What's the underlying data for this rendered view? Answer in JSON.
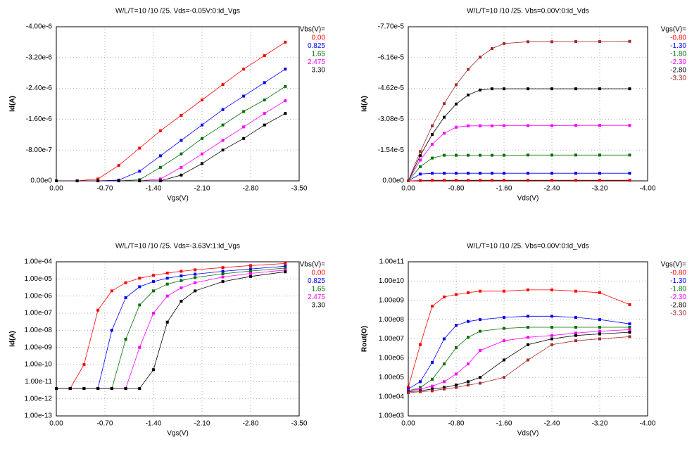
{
  "chart_data": [
    {
      "type": "scatter",
      "title": "W/L/T=10 /10 /25.  Vds=-0.05V:0:Id_Vgs",
      "x_label": "Vgs(V)",
      "y_label": "Id(A)",
      "legend_title": "Vbs(V)=",
      "legend": "right",
      "grid": true,
      "log_y": false,
      "xlim": [
        0,
        -3.5
      ],
      "ylim": [
        0,
        -4e-06
      ],
      "xticks": [
        {
          "value": 0,
          "label": "0.00"
        },
        {
          "value": -0.7,
          "label": "-0.70"
        },
        {
          "value": -1.4,
          "label": "-1.40"
        },
        {
          "value": -2.1,
          "label": "-2.10"
        },
        {
          "value": -2.8,
          "label": "-2.80"
        },
        {
          "value": -3.5,
          "label": "-3.50"
        }
      ],
      "yticks": [
        {
          "value": 0,
          "label": "0.00e0"
        },
        {
          "value": -8e-07,
          "label": "-8.00e-7"
        },
        {
          "value": -1.6e-06,
          "label": "-1.60e-6"
        },
        {
          "value": -2.4e-06,
          "label": "-2.40e-6"
        },
        {
          "value": -3.2e-06,
          "label": "-3.20e-6"
        },
        {
          "value": -4e-06,
          "label": "-4.00e-6"
        }
      ],
      "x": [
        0,
        -0.3,
        -0.6,
        -0.9,
        -1.2,
        -1.5,
        -1.8,
        -2.1,
        -2.4,
        -2.7,
        -3.0,
        -3.3
      ],
      "series": [
        {
          "name": "0.00",
          "color": "#ff0000",
          "values": [
            0,
            0,
            -5e-08,
            -4e-07,
            -8.5e-07,
            -1.3e-06,
            -1.7e-06,
            -2.1e-06,
            -2.5e-06,
            -2.9e-06,
            -3.25e-06,
            -3.6e-06
          ]
        },
        {
          "name": "0.825",
          "color": "#0000ff",
          "values": [
            0,
            0,
            0,
            -2e-08,
            -2.5e-07,
            -6.5e-07,
            -1.05e-06,
            -1.45e-06,
            -1.85e-06,
            -2.2e-06,
            -2.55e-06,
            -2.9e-06
          ]
        },
        {
          "name": "1.65",
          "color": "#007000",
          "values": [
            0,
            0,
            0,
            0,
            -3e-08,
            -3.5e-07,
            -7e-07,
            -1.1e-06,
            -1.45e-06,
            -1.8e-06,
            -2.1e-06,
            -2.45e-06
          ]
        },
        {
          "name": "2.475",
          "color": "#ff00ff",
          "values": [
            0,
            0,
            0,
            0,
            0,
            -5e-08,
            -3.5e-07,
            -7e-07,
            -1.05e-06,
            -1.4e-06,
            -1.75e-06,
            -2.08e-06
          ]
        },
        {
          "name": "3.30",
          "color": "#000000",
          "values": [
            0,
            0,
            0,
            0,
            0,
            0,
            -1.5e-07,
            -4.5e-07,
            -8e-07,
            -1.1e-06,
            -1.45e-06,
            -1.75e-06
          ]
        }
      ]
    },
    {
      "type": "scatter",
      "title": "W/L/T=10 /10 /25.  Vbs=0.00V:0:Id_Vds",
      "x_label": "Vds(V)",
      "y_label": "Id(A)",
      "legend_title": "Vgs(V)=",
      "legend": "right",
      "grid": true,
      "log_y": false,
      "xlim": [
        0,
        -4
      ],
      "ylim": [
        0,
        -7.7e-05
      ],
      "xticks": [
        {
          "value": 0,
          "label": "0.00"
        },
        {
          "value": -0.8,
          "label": "-0.80"
        },
        {
          "value": -1.6,
          "label": "-1.60"
        },
        {
          "value": -2.4,
          "label": "-2.40"
        },
        {
          "value": -3.2,
          "label": "-3.20"
        },
        {
          "value": -4,
          "label": "-4.00"
        }
      ],
      "yticks": [
        {
          "value": 0,
          "label": "0.00e0"
        },
        {
          "value": -1.54e-05,
          "label": "-1.54e-5"
        },
        {
          "value": -3.08e-05,
          "label": "-3.08e-5"
        },
        {
          "value": -4.62e-05,
          "label": "-4.62e-5"
        },
        {
          "value": -6.16e-05,
          "label": "-6.16e-5"
        },
        {
          "value": -7.7e-05,
          "label": "-7.70e-5"
        }
      ],
      "x": [
        0,
        -0.2,
        -0.4,
        -0.6,
        -0.8,
        -1.0,
        -1.2,
        -1.4,
        -1.6,
        -2.0,
        -2.4,
        -2.8,
        -3.2,
        -3.7
      ],
      "series": [
        {
          "name": "-0.80",
          "color": "#ff0000",
          "values": [
            0,
            -2e-07,
            -3e-07,
            -3e-07,
            -3e-07,
            -3e-07,
            -3e-07,
            -3e-07,
            -3e-07,
            -3e-07,
            -3e-07,
            -3e-07,
            -3e-07,
            -3e-07
          ]
        },
        {
          "name": "-1.30",
          "color": "#0000ff",
          "values": [
            0,
            -3.4e-06,
            -3.8e-06,
            -3.8e-06,
            -3.8e-06,
            -3.8e-06,
            -3.8e-06,
            -3.8e-06,
            -3.8e-06,
            -3.8e-06,
            -3.8e-06,
            -3.8e-06,
            -3.8e-06,
            -3.8e-06
          ]
        },
        {
          "name": "-1.80",
          "color": "#007000",
          "values": [
            0,
            -7.1e-06,
            -1.14e-05,
            -1.28e-05,
            -1.28e-05,
            -1.28e-05,
            -1.28e-05,
            -1.28e-05,
            -1.28e-05,
            -1.29e-05,
            -1.29e-05,
            -1.29e-05,
            -1.29e-05,
            -1.29e-05
          ]
        },
        {
          "name": "-2.30",
          "color": "#ff00ff",
          "values": [
            0,
            -1.04e-05,
            -1.83e-05,
            -2.38e-05,
            -2.68e-05,
            -2.75e-05,
            -2.75e-05,
            -2.75e-05,
            -2.76e-05,
            -2.76e-05,
            -2.76e-05,
            -2.77e-05,
            -2.77e-05,
            -2.77e-05
          ]
        },
        {
          "name": "-2.80",
          "color": "#000000",
          "values": [
            0,
            -1.26e-05,
            -2.32e-05,
            -3.18e-05,
            -3.84e-05,
            -4.29e-05,
            -4.54e-05,
            -4.6e-05,
            -4.6e-05,
            -4.6e-05,
            -4.6e-05,
            -4.6e-05,
            -4.6e-05,
            -4.6e-05
          ]
        },
        {
          "name": "-3.30",
          "color": "#a52a2a",
          "values": [
            0,
            -1.46e-05,
            -2.75e-05,
            -3.86e-05,
            -4.8e-05,
            -5.57e-05,
            -6.18e-05,
            -6.61e-05,
            -6.86e-05,
            -6.95e-05,
            -6.95e-05,
            -6.96e-05,
            -6.96e-05,
            -6.97e-05
          ]
        }
      ]
    },
    {
      "type": "scatter",
      "title": "W/L/T=10 /10 /25.  Vds=-3.63V:1:Id_Vgs",
      "x_label": "Vgs(V)",
      "y_label": "Id(A)",
      "legend_title": "Vbs(V)=",
      "legend": "right",
      "grid": true,
      "log_y": true,
      "xlim": [
        0,
        -3.5
      ],
      "ylim": [
        1e-13,
        0.0001
      ],
      "xticks": [
        {
          "value": 0,
          "label": "0.00"
        },
        {
          "value": -0.7,
          "label": "-0.70"
        },
        {
          "value": -1.4,
          "label": "-1.40"
        },
        {
          "value": -2.1,
          "label": "-2.10"
        },
        {
          "value": -2.8,
          "label": "-2.80"
        },
        {
          "value": -3.5,
          "label": "-3.50"
        }
      ],
      "yticks": [
        {
          "value": 1e-13,
          "label": "1.00e-13"
        },
        {
          "value": 1e-12,
          "label": "1.00e-12"
        },
        {
          "value": 1e-11,
          "label": "1.00e-11"
        },
        {
          "value": 1e-10,
          "label": "1.00e-10"
        },
        {
          "value": 1e-09,
          "label": "1.00e-09"
        },
        {
          "value": 1e-08,
          "label": "1.00e-08"
        },
        {
          "value": 1e-07,
          "label": "1.00e-07"
        },
        {
          "value": 1e-06,
          "label": "1.00e-06"
        },
        {
          "value": 1e-05,
          "label": "1.00e-05"
        },
        {
          "value": 0.0001,
          "label": "1.00e-04"
        }
      ],
      "x": [
        0,
        -0.2,
        -0.4,
        -0.6,
        -0.8,
        -1.0,
        -1.2,
        -1.4,
        -1.6,
        -1.8,
        -2.0,
        -2.4,
        -2.8,
        -3.3
      ],
      "series": [
        {
          "name": "0.00",
          "color": "#ff0000",
          "values": [
            4e-12,
            4e-12,
            1e-10,
            1.5e-07,
            2e-06,
            6e-06,
            1.1e-05,
            1.6e-05,
            2.2e-05,
            2.8e-05,
            3.4e-05,
            4.6e-05,
            6e-05,
            8e-05
          ]
        },
        {
          "name": "0.825",
          "color": "#0000ff",
          "values": [
            4e-12,
            4e-12,
            4e-12,
            4e-12,
            1e-08,
            8e-07,
            3.5e-06,
            7e-06,
            1.1e-05,
            1.5e-05,
            1.9e-05,
            2.8e-05,
            3.8e-05,
            5.5e-05
          ]
        },
        {
          "name": "1.65",
          "color": "#007000",
          "values": [
            4e-12,
            4e-12,
            4e-12,
            4e-12,
            4e-12,
            3e-09,
            3e-07,
            2e-06,
            5e-06,
            8e-06,
            1.2e-05,
            2e-05,
            2.9e-05,
            4.3e-05
          ]
        },
        {
          "name": "2.475",
          "color": "#ff00ff",
          "values": [
            4e-12,
            4e-12,
            4e-12,
            4e-12,
            4e-12,
            4e-12,
            1e-09,
            1e-07,
            1e-06,
            3e-06,
            6e-06,
            1.3e-05,
            2.1e-05,
            3.3e-05
          ]
        },
        {
          "name": "3.30",
          "color": "#000000",
          "values": [
            4e-12,
            4e-12,
            4e-12,
            4e-12,
            4e-12,
            4e-12,
            4e-12,
            5e-11,
            3e-08,
            5e-07,
            2e-06,
            7e-06,
            1.4e-05,
            2.6e-05
          ]
        }
      ]
    },
    {
      "type": "scatter",
      "title": "W/L/T=10 /10 /25.  Vbs=0.00V:0:Id_Vds",
      "x_label": "Vds(V)",
      "y_label": "Rout(O)",
      "legend_title": "Vgs(V)=",
      "legend": "right",
      "grid": true,
      "log_y": true,
      "xlim": [
        0,
        -4
      ],
      "ylim": [
        1000,
        100000000000.0
      ],
      "xticks": [
        {
          "value": 0,
          "label": "0.00"
        },
        {
          "value": -0.8,
          "label": "-0.80"
        },
        {
          "value": -1.6,
          "label": "-1.60"
        },
        {
          "value": -2.4,
          "label": "-2.40"
        },
        {
          "value": -3.2,
          "label": "-3.20"
        },
        {
          "value": -4,
          "label": "-4.00"
        }
      ],
      "yticks": [
        {
          "value": 1000,
          "label": "1.00e03"
        },
        {
          "value": 10000,
          "label": "1.00e04"
        },
        {
          "value": 100000,
          "label": "1.00e05"
        },
        {
          "value": 1000000,
          "label": "1.00e06"
        },
        {
          "value": 10000000,
          "label": "1.00e07"
        },
        {
          "value": 100000000,
          "label": "1.00e08"
        },
        {
          "value": 1000000000,
          "label": "1.00e09"
        },
        {
          "value": 10000000000,
          "label": "1.00e10"
        },
        {
          "value": 100000000000,
          "label": "1.00e11"
        }
      ],
      "x": [
        0,
        -0.2,
        -0.4,
        -0.6,
        -0.8,
        -1.0,
        -1.2,
        -1.6,
        -2.0,
        -2.4,
        -2.8,
        -3.2,
        -3.7
      ],
      "series": [
        {
          "name": "-0.80",
          "color": "#ff0000",
          "values": [
            30000.0,
            5000000.0,
            500000000.0,
            1500000000.0,
            2000000000.0,
            2500000000.0,
            3000000000.0,
            3000000000.0,
            3500000000.0,
            3500000000.0,
            3000000000.0,
            2500000000.0,
            600000000.0
          ]
        },
        {
          "name": "-1.30",
          "color": "#0000ff",
          "values": [
            25000.0,
            60000.0,
            600000.0,
            10000000.0,
            50000000.0,
            80000000.0,
            100000000.0,
            130000000.0,
            150000000.0,
            150000000.0,
            130000000.0,
            100000000.0,
            60000000.0
          ]
        },
        {
          "name": "-1.80",
          "color": "#007000",
          "values": [
            20000.0,
            30000.0,
            80000.0,
            500000.0,
            3500000.0,
            12000000.0,
            25000000.0,
            35000000.0,
            40000000.0,
            40000000.0,
            40000000.0,
            40000000.0,
            40000000.0
          ]
        },
        {
          "name": "-2.30",
          "color": "#ff00ff",
          "values": [
            20000.0,
            25000.0,
            35000.0,
            60000.0,
            150000.0,
            500000.0,
            2500000.0,
            8000000.0,
            12000000.0,
            15000000.0,
            20000000.0,
            25000000.0,
            30000000.0
          ]
        },
        {
          "name": "-2.80",
          "color": "#000000",
          "values": [
            18000.0,
            20000.0,
            25000.0,
            30000.0,
            40000.0,
            60000.0,
            100000.0,
            800000.0,
            5000000.0,
            10000000.0,
            15000000.0,
            18000000.0,
            22000000.0
          ]
        },
        {
          "name": "-3.30",
          "color": "#a52a2a",
          "values": [
            16000.0,
            18000.0,
            20000.0,
            25000.0,
            30000.0,
            40000.0,
            50000.0,
            100000.0,
            800000.0,
            5000000.0,
            8000000.0,
            10000000.0,
            13000000.0
          ]
        }
      ]
    }
  ]
}
